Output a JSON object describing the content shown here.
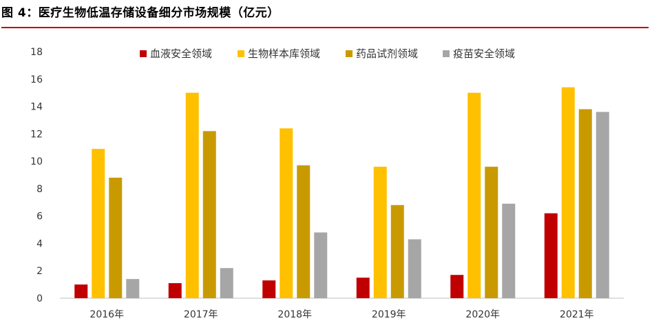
{
  "figure_title": "图 4：医疗生物低温存储设备细分市场规模（亿元）",
  "chart_data": {
    "type": "bar",
    "categories": [
      "2016年",
      "2017年",
      "2018年",
      "2019年",
      "2020年",
      "2021年"
    ],
    "series": [
      {
        "name": "血液安全领域",
        "color": "#c00000",
        "values": [
          1.0,
          1.1,
          1.3,
          1.5,
          1.7,
          6.2
        ]
      },
      {
        "name": "生物样本库领域",
        "color": "#ffc000",
        "values": [
          10.9,
          15.0,
          12.4,
          9.6,
          15.0,
          15.4
        ]
      },
      {
        "name": "药品试剂领域",
        "color": "#c99a00",
        "values": [
          8.8,
          12.2,
          9.7,
          6.8,
          9.6,
          13.8
        ]
      },
      {
        "name": "疫苗安全领域",
        "color": "#a6a6a6",
        "values": [
          1.4,
          2.2,
          4.8,
          4.3,
          6.9,
          13.6
        ]
      }
    ],
    "ylim": [
      0,
      18
    ],
    "yticks": [
      0,
      2,
      4,
      6,
      8,
      10,
      12,
      14,
      16,
      18
    ],
    "grid": false,
    "legend_position": "top"
  }
}
